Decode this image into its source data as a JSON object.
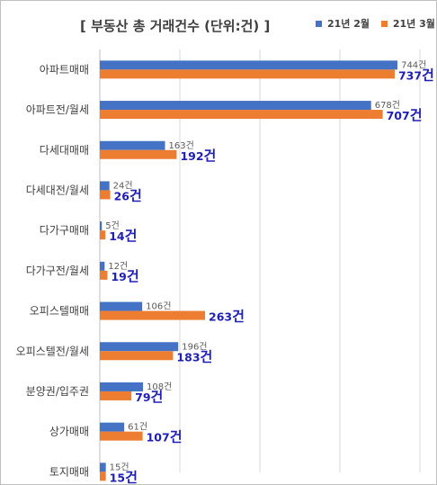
{
  "chart_data": {
    "type": "bar",
    "orientation": "horizontal",
    "title": "[ 부동산 총 거래건수 (단위:건) ]",
    "categories": [
      "아파트매매",
      "아파트전/월세",
      "다세대매매",
      "다세대전/월세",
      "다가구매매",
      "다가구전/월세",
      "오피스텔매매",
      "오피스텔전/월세",
      "분양권/입주권",
      "상가매매",
      "토지매매"
    ],
    "series": [
      {
        "name": "21년 2월",
        "values": [
          744,
          678,
          163,
          24,
          5,
          12,
          106,
          196,
          108,
          61,
          15
        ],
        "color": "#4472c4"
      },
      {
        "name": "21년 3월",
        "values": [
          737,
          707,
          192,
          26,
          14,
          19,
          263,
          183,
          79,
          107,
          15
        ],
        "color": "#ed7d31"
      }
    ],
    "unit_suffix": "건",
    "xlim": [
      0,
      800
    ],
    "grid": true,
    "legend_position": "top-right",
    "label_colors": {
      "feb": "#595959",
      "mar": "#1f1fb5"
    }
  }
}
